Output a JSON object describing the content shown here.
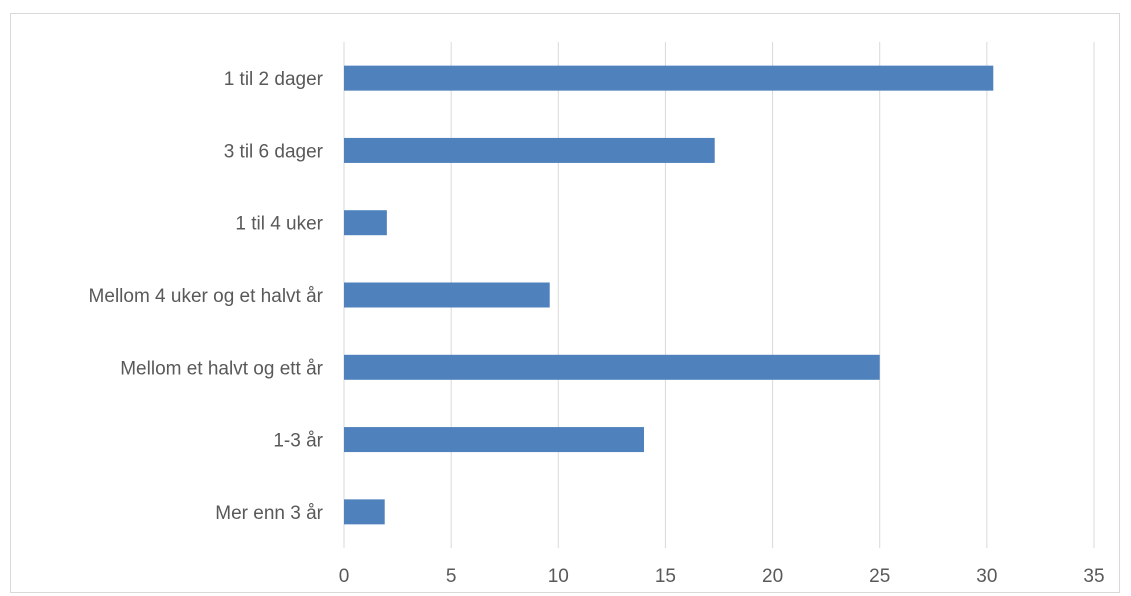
{
  "chart_data": {
    "type": "bar",
    "orientation": "horizontal",
    "categories": [
      "1 til 2 dager",
      "3 til 6 dager",
      "1 til 4 uker",
      "Mellom 4 uker og et halvt år",
      "Mellom et halvt og ett år",
      "1-3 år",
      "Mer enn 3 år"
    ],
    "values": [
      30.3,
      17.3,
      2.0,
      9.6,
      25.0,
      14.0,
      1.9
    ],
    "xlim": [
      0,
      35
    ],
    "ticks": [
      "0",
      "5",
      "10",
      "15",
      "20",
      "25",
      "30",
      "35"
    ],
    "title": "",
    "xlabel": "",
    "ylabel": "",
    "grid": "vertical",
    "legend": "none",
    "bar_color": "#4f81bd",
    "grid_color": "#d9d9d9"
  }
}
